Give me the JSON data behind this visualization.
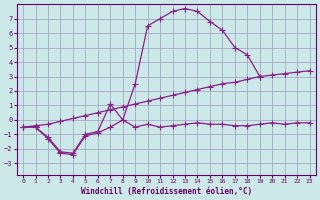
{
  "xlabel": "Windchill (Refroidissement éolien,°C)",
  "bg_color": "#cce8e8",
  "grid_color": "#a0a0c0",
  "line_color": "#882288",
  "xlim": [
    -0.5,
    23.5
  ],
  "ylim": [
    -3.8,
    8.0
  ],
  "x_ticks": [
    0,
    1,
    2,
    3,
    4,
    5,
    6,
    7,
    8,
    9,
    10,
    11,
    12,
    13,
    14,
    15,
    16,
    17,
    18,
    19,
    20,
    21,
    22,
    23
  ],
  "y_ticks": [
    -3,
    -2,
    -1,
    0,
    1,
    2,
    3,
    4,
    5,
    6,
    7
  ],
  "line1_x": [
    0,
    1,
    2,
    3,
    4,
    5,
    6,
    7,
    8,
    9,
    10,
    11,
    12,
    13,
    14,
    15,
    16,
    17,
    18,
    19
  ],
  "line1_y": [
    -0.5,
    -0.5,
    -1.2,
    -2.2,
    -2.3,
    -1.0,
    -0.8,
    1.1,
    0.0,
    2.5,
    6.5,
    7.0,
    7.5,
    7.7,
    7.5,
    6.8,
    6.2,
    5.0,
    4.5,
    3.0
  ],
  "line2_x": [
    0,
    1,
    2,
    3,
    4,
    5,
    6,
    7,
    8,
    9,
    10,
    11,
    12,
    13,
    14,
    15,
    16,
    17,
    18,
    19,
    20,
    21,
    22,
    23
  ],
  "line2_y": [
    -0.5,
    -0.4,
    -0.3,
    -0.1,
    0.1,
    0.3,
    0.5,
    0.7,
    0.9,
    1.1,
    1.3,
    1.5,
    1.7,
    1.9,
    2.1,
    2.3,
    2.5,
    2.6,
    2.8,
    3.0,
    3.1,
    3.2,
    3.3,
    3.4
  ],
  "line3_x": [
    0,
    1,
    2,
    3,
    4,
    5,
    6,
    7,
    8,
    9,
    10,
    11,
    12,
    13,
    14,
    15,
    16,
    17,
    18,
    19,
    20,
    21,
    22,
    23
  ],
  "line3_y": [
    -0.5,
    -0.5,
    -1.3,
    -2.3,
    -2.4,
    -1.1,
    -0.9,
    -0.5,
    0.0,
    -0.5,
    -0.3,
    -0.5,
    -0.4,
    -0.3,
    -0.2,
    -0.3,
    -0.3,
    -0.4,
    -0.4,
    -0.3,
    -0.2,
    -0.3,
    -0.2,
    -0.2
  ]
}
